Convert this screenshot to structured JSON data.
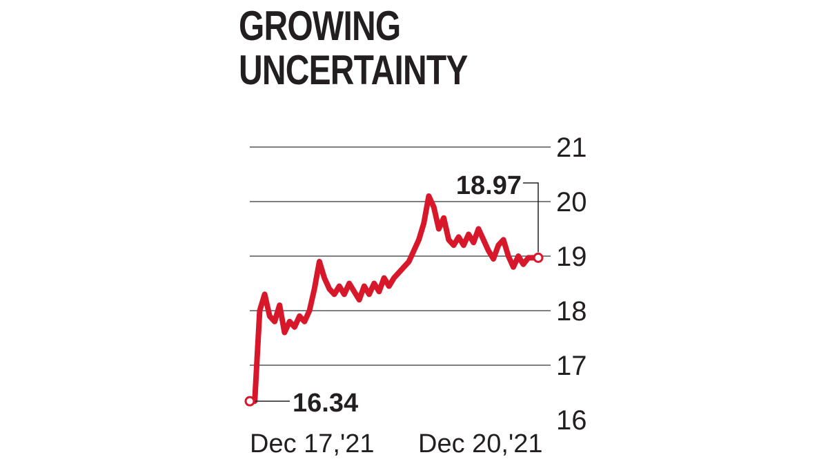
{
  "title": {
    "line1": "GROWING",
    "line2": "UNCERTAINTY"
  },
  "colors": {
    "series": "#d7182a",
    "grid": "#555555",
    "text": "#231f20"
  },
  "chart_data": {
    "type": "line",
    "title": "GROWING UNCERTAINTY",
    "xlabel": "",
    "ylabel": "",
    "ylim": [
      16,
      21
    ],
    "yticks": [
      21,
      20,
      19,
      18,
      17,
      16
    ],
    "y_axis_side": "right",
    "grid": true,
    "x_tick_labels": [
      "Dec 17,'21",
      "Dec 20,'21"
    ],
    "annotations": [
      {
        "label": "16.34",
        "point": "start"
      },
      {
        "label": "18.97",
        "point": "end"
      }
    ],
    "series": [
      {
        "values": [
          16.34,
          16.34,
          18.0,
          18.3,
          17.9,
          17.8,
          18.1,
          17.6,
          17.8,
          17.7,
          17.9,
          17.8,
          18.0,
          18.4,
          18.9,
          18.6,
          18.4,
          18.3,
          18.45,
          18.3,
          18.5,
          18.35,
          18.2,
          18.45,
          18.3,
          18.5,
          18.35,
          18.6,
          18.45,
          18.6,
          18.7,
          18.8,
          18.9,
          19.1,
          19.3,
          19.6,
          20.1,
          19.9,
          19.5,
          19.7,
          19.3,
          19.2,
          19.35,
          19.2,
          19.4,
          19.25,
          19.5,
          19.3,
          19.1,
          18.95,
          19.2,
          19.3,
          19.0,
          18.8,
          19.0,
          18.85,
          18.97,
          18.97,
          18.97
        ]
      }
    ]
  }
}
